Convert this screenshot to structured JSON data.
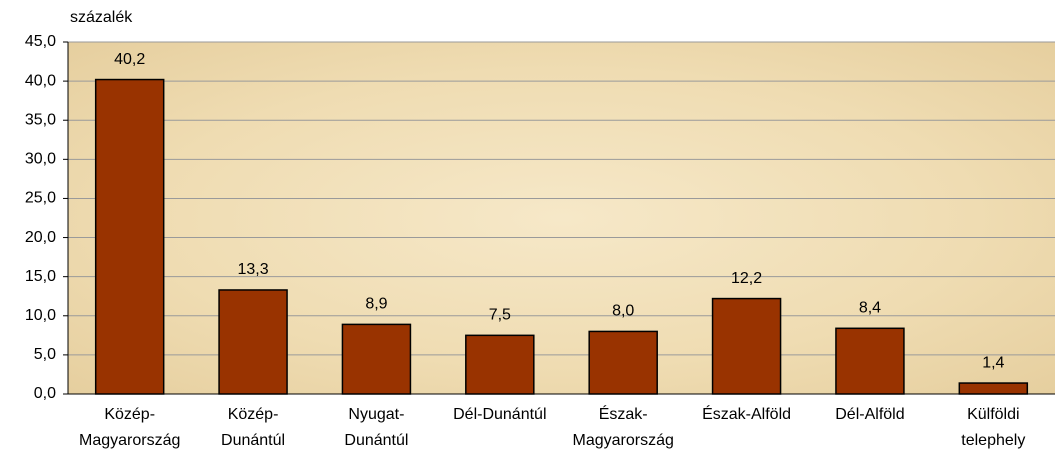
{
  "chart_data": {
    "type": "bar",
    "y_label": "százalék",
    "categories": [
      [
        "Közép-",
        "Magyarország"
      ],
      [
        "Közép-",
        "Dunántúl"
      ],
      [
        "Nyugat-",
        "Dunántúl"
      ],
      [
        "Dél-Dunántúl"
      ],
      [
        "Észak-",
        "Magyarország"
      ],
      [
        "Észak-Alföld"
      ],
      [
        "Dél-Alföld"
      ],
      [
        "Külföldi",
        "telephely"
      ]
    ],
    "values": [
      40.2,
      13.3,
      8.9,
      7.5,
      8.0,
      12.2,
      8.4,
      1.4
    ],
    "value_labels": [
      "40,2",
      "13,3",
      "8,9",
      "7,5",
      "8,0",
      "12,2",
      "8,4",
      "1,4"
    ],
    "color": "#993300",
    "ylim": [
      0,
      45
    ],
    "yticks": [
      {
        "value": 0,
        "label": "0,0"
      },
      {
        "value": 5,
        "label": "5,0"
      },
      {
        "value": 10,
        "label": "10,0"
      },
      {
        "value": 15,
        "label": "15,0"
      },
      {
        "value": 20,
        "label": "20,0"
      },
      {
        "value": 25,
        "label": "25,0"
      },
      {
        "value": 30,
        "label": "30,0"
      },
      {
        "value": 35,
        "label": "35,0"
      },
      {
        "value": 40,
        "label": "40,0"
      },
      {
        "value": 45,
        "label": "45,0"
      }
    ],
    "grid": true
  }
}
